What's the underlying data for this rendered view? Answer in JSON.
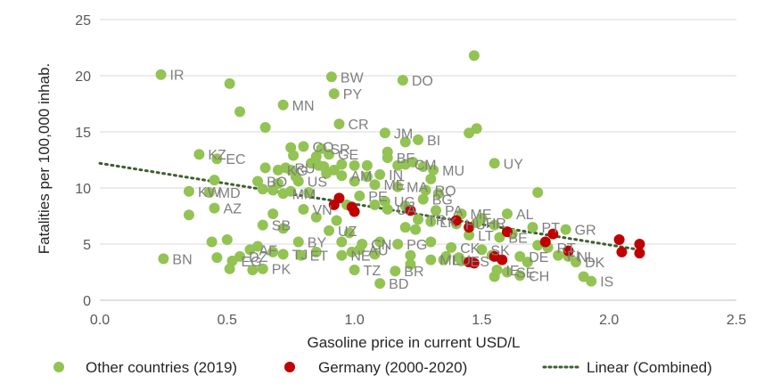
{
  "chart_data": {
    "type": "scatter",
    "xlabel": "Gasoline price in current USD/L",
    "ylabel": "Fatalities per 100,000 inhab.",
    "xlim": [
      0,
      2.5
    ],
    "ylim": [
      0,
      25
    ],
    "x_ticks": [
      "0.0",
      "0.5",
      "1.0",
      "1.5",
      "2.0",
      "2.5"
    ],
    "y_ticks": [
      "0",
      "5",
      "10",
      "15",
      "20",
      "25"
    ],
    "grid": "horizontal",
    "legend_position": "bottom",
    "legend": {
      "other": "Other countries (2019)",
      "germany": "Germany (2000-2020)",
      "trend": "Linear (Combined)"
    },
    "colors": {
      "other": "#92c353",
      "germany": "#c00000",
      "trend": "#3f5f2f",
      "grid": "#d9d9d9",
      "label": "#7f7f7f"
    },
    "trendline": {
      "x": [
        0,
        2.12
      ],
      "y": [
        12.2,
        4.5
      ]
    },
    "series": [
      {
        "name": "Other countries (2019)",
        "points": [
          {
            "x": 0.24,
            "y": 20.1,
            "label": "IR"
          },
          {
            "x": 0.51,
            "y": 19.3,
            "label": ""
          },
          {
            "x": 0.91,
            "y": 19.9,
            "label": "BW"
          },
          {
            "x": 0.92,
            "y": 18.4,
            "label": "PY"
          },
          {
            "x": 1.47,
            "y": 21.8,
            "label": ""
          },
          {
            "x": 1.19,
            "y": 19.6,
            "label": "DO"
          },
          {
            "x": 0.55,
            "y": 16.8,
            "label": ""
          },
          {
            "x": 0.72,
            "y": 17.4,
            "label": "MN"
          },
          {
            "x": 0.65,
            "y": 15.4,
            "label": ""
          },
          {
            "x": 0.94,
            "y": 15.7,
            "label": "CR"
          },
          {
            "x": 1.12,
            "y": 14.9,
            "label": "JM"
          },
          {
            "x": 1.25,
            "y": 14.3,
            "label": "BI"
          },
          {
            "x": 1.2,
            "y": 14.1,
            "label": ""
          },
          {
            "x": 1.45,
            "y": 14.9,
            "label": ""
          },
          {
            "x": 1.48,
            "y": 15.3,
            "label": ""
          },
          {
            "x": 0.39,
            "y": 13.0,
            "label": "KZ"
          },
          {
            "x": 0.46,
            "y": 12.6,
            "label": "EC"
          },
          {
            "x": 0.75,
            "y": 13.6,
            "label": ""
          },
          {
            "x": 0.8,
            "y": 13.7,
            "label": "CO"
          },
          {
            "x": 0.87,
            "y": 13.5,
            "label": "SR"
          },
          {
            "x": 0.9,
            "y": 13.0,
            "label": "GE"
          },
          {
            "x": 0.85,
            "y": 12.8,
            "label": ""
          },
          {
            "x": 0.86,
            "y": 12.0,
            "label": ""
          },
          {
            "x": 0.83,
            "y": 12.2,
            "label": ""
          },
          {
            "x": 0.76,
            "y": 12.9,
            "label": ""
          },
          {
            "x": 0.88,
            "y": 11.9,
            "label": ""
          },
          {
            "x": 0.92,
            "y": 11.6,
            "label": ""
          },
          {
            "x": 0.95,
            "y": 12.1,
            "label": ""
          },
          {
            "x": 1.0,
            "y": 12.0,
            "label": ""
          },
          {
            "x": 1.05,
            "y": 12.0,
            "label": ""
          },
          {
            "x": 0.65,
            "y": 11.8,
            "label": ""
          },
          {
            "x": 0.7,
            "y": 11.6,
            "label": "KG"
          },
          {
            "x": 0.73,
            "y": 11.8,
            "label": "RU"
          },
          {
            "x": 0.77,
            "y": 11.0,
            "label": ""
          },
          {
            "x": 0.89,
            "y": 11.3,
            "label": ""
          },
          {
            "x": 0.95,
            "y": 11.1,
            "label": "AM"
          },
          {
            "x": 1.13,
            "y": 12.7,
            "label": "BF"
          },
          {
            "x": 1.13,
            "y": 13.2,
            "label": ""
          },
          {
            "x": 1.2,
            "y": 12.1,
            "label": "CM"
          },
          {
            "x": 1.23,
            "y": 12.3,
            "label": ""
          },
          {
            "x": 1.27,
            "y": 11.9,
            "label": ""
          },
          {
            "x": 1.17,
            "y": 12.0,
            "label": ""
          },
          {
            "x": 1.31,
            "y": 11.6,
            "label": "MU"
          },
          {
            "x": 1.55,
            "y": 12.2,
            "label": "UY"
          },
          {
            "x": 1.05,
            "y": 11.0,
            "label": ""
          },
          {
            "x": 1.1,
            "y": 11.2,
            "label": "IN"
          },
          {
            "x": 0.75,
            "y": 11.6,
            "label": ""
          },
          {
            "x": 0.62,
            "y": 10.6,
            "label": "BO"
          },
          {
            "x": 0.7,
            "y": 10.4,
            "label": ""
          },
          {
            "x": 0.78,
            "y": 10.6,
            "label": "US"
          },
          {
            "x": 0.45,
            "y": 10.7,
            "label": ""
          },
          {
            "x": 0.35,
            "y": 9.7,
            "label": "KW"
          },
          {
            "x": 0.43,
            "y": 9.6,
            "label": "MD"
          },
          {
            "x": 0.72,
            "y": 9.5,
            "label": "MM"
          },
          {
            "x": 0.64,
            "y": 9.9,
            "label": ""
          },
          {
            "x": 0.68,
            "y": 9.8,
            "label": ""
          },
          {
            "x": 0.75,
            "y": 9.7,
            "label": ""
          },
          {
            "x": 0.82,
            "y": 9.6,
            "label": ""
          },
          {
            "x": 1.0,
            "y": 10.6,
            "label": ""
          },
          {
            "x": 1.08,
            "y": 10.3,
            "label": "ME"
          },
          {
            "x": 1.17,
            "y": 10.1,
            "label": "MA"
          },
          {
            "x": 1.28,
            "y": 9.8,
            "label": "RO"
          },
          {
            "x": 1.3,
            "y": 10.8,
            "label": ""
          },
          {
            "x": 1.33,
            "y": 9.5,
            "label": ""
          },
          {
            "x": 1.02,
            "y": 9.3,
            "label": "PE"
          },
          {
            "x": 0.97,
            "y": 8.5,
            "label": ""
          },
          {
            "x": 1.12,
            "y": 8.8,
            "label": "UG"
          },
          {
            "x": 1.08,
            "y": 8.5,
            "label": ""
          },
          {
            "x": 1.13,
            "y": 8.1,
            "label": "UA"
          },
          {
            "x": 1.2,
            "y": 8.4,
            "label": ""
          },
          {
            "x": 1.27,
            "y": 9.0,
            "label": "BG"
          },
          {
            "x": 1.32,
            "y": 8.0,
            "label": "PA"
          },
          {
            "x": 1.42,
            "y": 7.7,
            "label": "ME"
          },
          {
            "x": 1.5,
            "y": 7.3,
            "label": ""
          },
          {
            "x": 1.6,
            "y": 7.7,
            "label": "AL"
          },
          {
            "x": 1.72,
            "y": 9.6,
            "label": ""
          },
          {
            "x": 0.45,
            "y": 8.2,
            "label": "AZ"
          },
          {
            "x": 0.35,
            "y": 7.6,
            "label": ""
          },
          {
            "x": 0.8,
            "y": 8.1,
            "label": "VN"
          },
          {
            "x": 0.68,
            "y": 7.7,
            "label": ""
          },
          {
            "x": 0.85,
            "y": 7.4,
            "label": ""
          },
          {
            "x": 0.93,
            "y": 7.1,
            "label": ""
          },
          {
            "x": 1.25,
            "y": 7.2,
            "label": "TR"
          },
          {
            "x": 1.3,
            "y": 7.0,
            "label": "LK"
          },
          {
            "x": 1.4,
            "y": 6.8,
            "label": "HU"
          },
          {
            "x": 1.48,
            "y": 6.9,
            "label": "HR"
          },
          {
            "x": 1.55,
            "y": 6.7,
            "label": ""
          },
          {
            "x": 1.2,
            "y": 6.5,
            "label": ""
          },
          {
            "x": 1.24,
            "y": 6.3,
            "label": ""
          },
          {
            "x": 0.64,
            "y": 6.7,
            "label": "SB"
          },
          {
            "x": 0.72,
            "y": 6.4,
            "label": ""
          },
          {
            "x": 0.9,
            "y": 6.2,
            "label": "UZ"
          },
          {
            "x": 0.98,
            "y": 6.0,
            "label": ""
          },
          {
            "x": 1.7,
            "y": 6.5,
            "label": "PT"
          },
          {
            "x": 1.83,
            "y": 6.3,
            "label": "GR"
          },
          {
            "x": 1.57,
            "y": 5.6,
            "label": "BE"
          },
          {
            "x": 1.62,
            "y": 5.9,
            "label": ""
          },
          {
            "x": 1.45,
            "y": 5.8,
            "label": "LT"
          },
          {
            "x": 0.5,
            "y": 5.4,
            "label": ""
          },
          {
            "x": 0.44,
            "y": 5.2,
            "label": ""
          },
          {
            "x": 0.78,
            "y": 5.2,
            "label": "BY"
          },
          {
            "x": 0.95,
            "y": 5.2,
            "label": ""
          },
          {
            "x": 1.03,
            "y": 5.0,
            "label": "CN"
          },
          {
            "x": 1.1,
            "y": 5.2,
            "label": ""
          },
          {
            "x": 1.17,
            "y": 5.0,
            "label": "PG"
          },
          {
            "x": 1.3,
            "y": 5.2,
            "label": ""
          },
          {
            "x": 1.38,
            "y": 4.7,
            "label": "CK"
          },
          {
            "x": 1.5,
            "y": 4.5,
            "label": "SK"
          },
          {
            "x": 1.72,
            "y": 4.9,
            "label": ""
          },
          {
            "x": 1.76,
            "y": 4.7,
            "label": "RT"
          },
          {
            "x": 0.59,
            "y": 4.5,
            "label": "AF"
          },
          {
            "x": 0.62,
            "y": 4.8,
            "label": ""
          },
          {
            "x": 0.68,
            "y": 4.3,
            "label": ""
          },
          {
            "x": 0.79,
            "y": 4.0,
            "label": "ET"
          },
          {
            "x": 0.85,
            "y": 4.3,
            "label": ""
          },
          {
            "x": 0.99,
            "y": 4.3,
            "label": ""
          },
          {
            "x": 1.02,
            "y": 4.5,
            "label": "AU"
          },
          {
            "x": 1.08,
            "y": 4.1,
            "label": ""
          },
          {
            "x": 1.22,
            "y": 4.0,
            "label": ""
          },
          {
            "x": 1.36,
            "y": 3.9,
            "label": ""
          },
          {
            "x": 1.41,
            "y": 3.8,
            "label": ""
          },
          {
            "x": 1.54,
            "y": 4.0,
            "label": ""
          },
          {
            "x": 1.65,
            "y": 3.9,
            "label": "DE"
          },
          {
            "x": 1.8,
            "y": 4.0,
            "label": "FI"
          },
          {
            "x": 1.84,
            "y": 3.9,
            "label": "NL"
          },
          {
            "x": 0.25,
            "y": 3.7,
            "label": "BN"
          },
          {
            "x": 0.46,
            "y": 3.8,
            "label": ""
          },
          {
            "x": 0.55,
            "y": 3.9,
            "label": "DZ"
          },
          {
            "x": 0.52,
            "y": 3.5,
            "label": "EG"
          },
          {
            "x": 0.72,
            "y": 4.1,
            "label": "TJ"
          },
          {
            "x": 0.95,
            "y": 4.0,
            "label": "NE"
          },
          {
            "x": 1.3,
            "y": 3.6,
            "label": "ML"
          },
          {
            "x": 1.35,
            "y": 3.6,
            "label": "LU"
          },
          {
            "x": 1.42,
            "y": 3.5,
            "label": "ES"
          },
          {
            "x": 1.68,
            "y": 3.4,
            "label": ""
          },
          {
            "x": 1.87,
            "y": 3.4,
            "label": "DK"
          },
          {
            "x": 0.51,
            "y": 2.8,
            "label": ""
          },
          {
            "x": 0.6,
            "y": 2.7,
            "label": ""
          },
          {
            "x": 0.64,
            "y": 2.8,
            "label": "PK"
          },
          {
            "x": 1.0,
            "y": 2.7,
            "label": "TZ"
          },
          {
            "x": 1.16,
            "y": 2.6,
            "label": "BR"
          },
          {
            "x": 1.22,
            "y": 3.2,
            "label": ""
          },
          {
            "x": 1.56,
            "y": 2.7,
            "label": "IE"
          },
          {
            "x": 1.6,
            "y": 2.5,
            "label": "SE"
          },
          {
            "x": 1.55,
            "y": 2.1,
            "label": ""
          },
          {
            "x": 1.65,
            "y": 2.2,
            "label": "CH"
          },
          {
            "x": 1.9,
            "y": 2.1,
            "label": ""
          },
          {
            "x": 1.93,
            "y": 1.7,
            "label": "IS"
          },
          {
            "x": 1.1,
            "y": 1.5,
            "label": "BD"
          }
        ]
      },
      {
        "name": "Germany (2000-2020)",
        "points": [
          {
            "x": 0.94,
            "y": 9.1
          },
          {
            "x": 0.92,
            "y": 8.5
          },
          {
            "x": 0.99,
            "y": 8.3
          },
          {
            "x": 1.0,
            "y": 7.9
          },
          {
            "x": 1.22,
            "y": 8.0
          },
          {
            "x": 1.4,
            "y": 7.1
          },
          {
            "x": 1.45,
            "y": 6.5
          },
          {
            "x": 1.6,
            "y": 6.1
          },
          {
            "x": 1.78,
            "y": 5.9
          },
          {
            "x": 1.75,
            "y": 5.2
          },
          {
            "x": 2.04,
            "y": 5.4
          },
          {
            "x": 2.12,
            "y": 5.0
          },
          {
            "x": 2.05,
            "y": 4.3
          },
          {
            "x": 2.12,
            "y": 4.2
          },
          {
            "x": 1.84,
            "y": 4.4
          },
          {
            "x": 1.55,
            "y": 3.9
          },
          {
            "x": 1.58,
            "y": 3.6
          },
          {
            "x": 1.45,
            "y": 3.4
          },
          {
            "x": 1.47,
            "y": 3.3
          }
        ]
      }
    ]
  }
}
